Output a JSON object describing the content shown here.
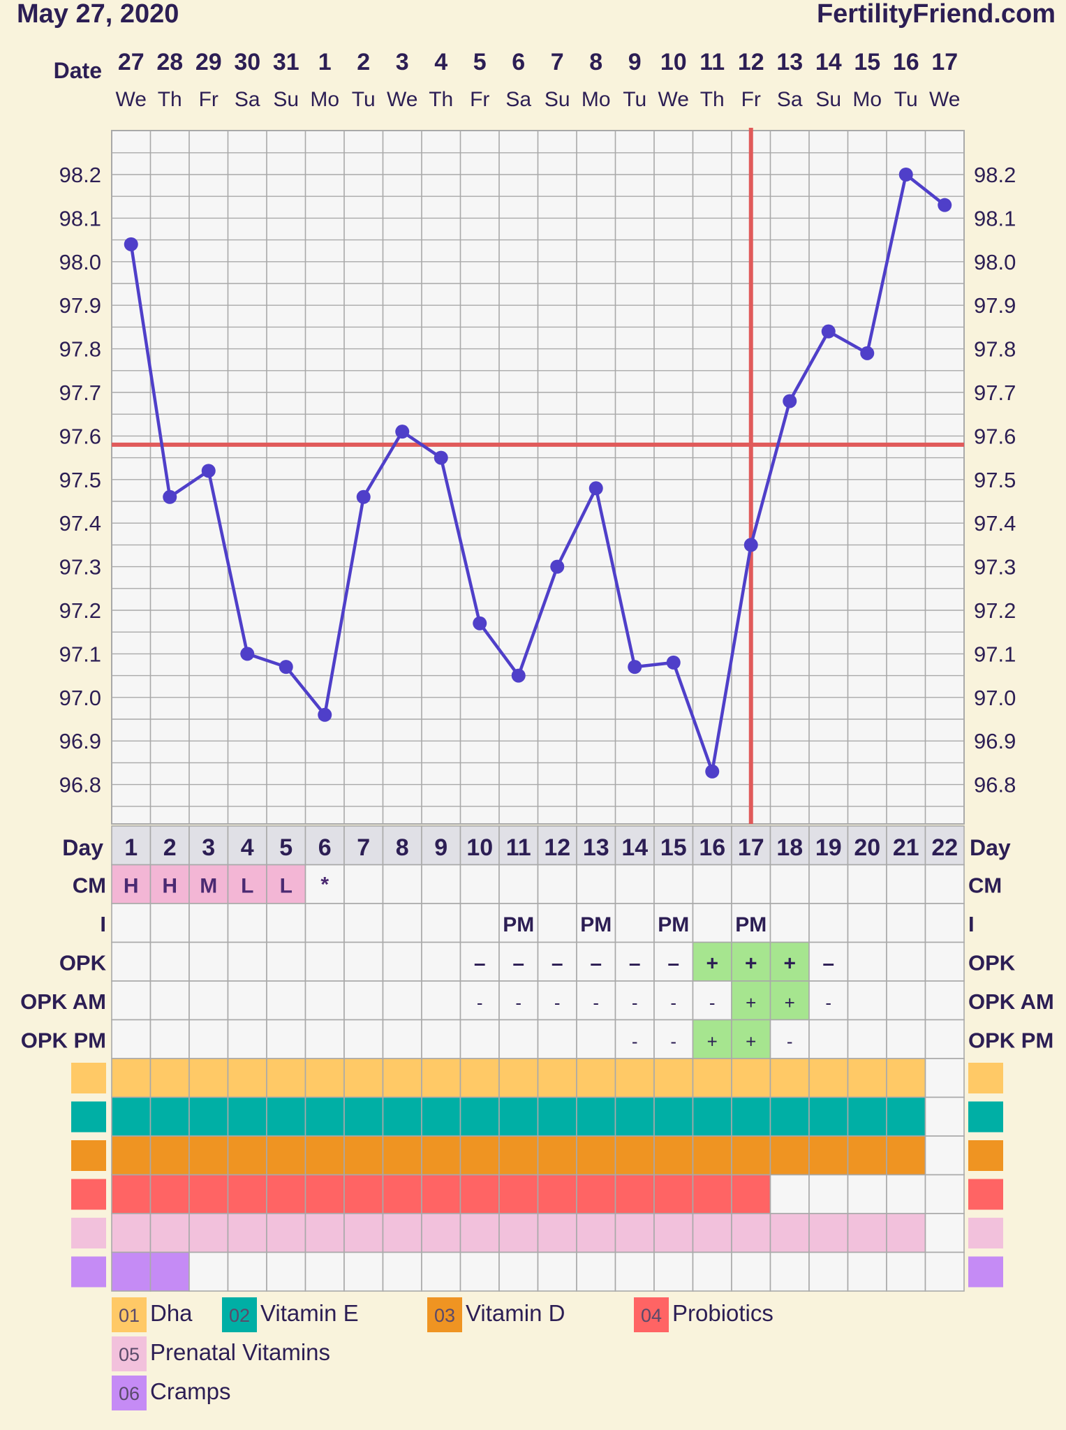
{
  "header": {
    "date": "May 27, 2020",
    "site": "FertilityFriend.com"
  },
  "row_labels": {
    "date": "Date",
    "day": "Day",
    "cm": "CM",
    "i": "I",
    "opk": "OPK",
    "opk_am": "OPK AM",
    "opk_pm": "OPK PM"
  },
  "chart_data": {
    "type": "line",
    "title": "",
    "xlabel": "",
    "ylabel": "",
    "ylim": [
      96.7,
      98.3
    ],
    "yticks": [
      96.8,
      96.9,
      97.0,
      97.1,
      97.2,
      97.3,
      97.4,
      97.5,
      97.6,
      97.7,
      97.8,
      97.9,
      98.0,
      98.1,
      98.2
    ],
    "dates": [
      "27",
      "28",
      "29",
      "30",
      "31",
      "1",
      "2",
      "3",
      "4",
      "5",
      "6",
      "7",
      "8",
      "9",
      "10",
      "11",
      "12",
      "13",
      "14",
      "15",
      "16",
      "17"
    ],
    "weekdays": [
      "We",
      "Th",
      "Fr",
      "Sa",
      "Su",
      "Mo",
      "Tu",
      "We",
      "Th",
      "Fr",
      "Sa",
      "Su",
      "Mo",
      "Tu",
      "We",
      "Th",
      "Fr",
      "Sa",
      "Su",
      "Mo",
      "Tu",
      "We"
    ],
    "cycle_days": [
      "1",
      "2",
      "3",
      "4",
      "5",
      "6",
      "7",
      "8",
      "9",
      "10",
      "11",
      "12",
      "13",
      "14",
      "15",
      "16",
      "17",
      "18",
      "19",
      "20",
      "21",
      "22"
    ],
    "temperatures": [
      98.04,
      97.46,
      97.52,
      97.1,
      97.07,
      96.96,
      97.46,
      97.61,
      97.55,
      97.17,
      97.05,
      97.3,
      97.48,
      97.07,
      97.08,
      96.83,
      97.35,
      97.68,
      97.84,
      97.79,
      98.2,
      98.13
    ],
    "coverline": 97.58,
    "ovulation_day": 17,
    "series_color": "#4f3fc9",
    "marker_color": "#e05a5a",
    "rows": {
      "cm": [
        "H",
        "H",
        "M",
        "L",
        "L",
        "*",
        "",
        "",
        "",
        "",
        "",
        "",
        "",
        "",
        "",
        "",
        "",
        "",
        "",
        "",
        "",
        ""
      ],
      "i": [
        "",
        "",
        "",
        "",
        "",
        "",
        "",
        "",
        "",
        "",
        "PM",
        "",
        "PM",
        "",
        "PM",
        "",
        "PM",
        "",
        "",
        "",
        "",
        ""
      ],
      "opk": [
        "",
        "",
        "",
        "",
        "",
        "",
        "",
        "",
        "",
        "-",
        "-",
        "-",
        "-",
        "-",
        "-",
        "+",
        "+",
        "+",
        "-",
        "",
        "",
        ""
      ],
      "opk_am": [
        "",
        "",
        "",
        "",
        "",
        "",
        "",
        "",
        "",
        "-",
        "-",
        "-",
        "-",
        "-",
        "-",
        "-",
        "+",
        "+",
        "-",
        "",
        "",
        ""
      ],
      "opk_pm": [
        "",
        "",
        "",
        "",
        "",
        "",
        "",
        "",
        "",
        "",
        "",
        "",
        "",
        "-",
        "-",
        "+",
        "+",
        "-",
        "",
        "",
        "",
        ""
      ]
    },
    "supplements": [
      {
        "code": "01",
        "name": "Dha",
        "color": "#ffc966",
        "days": [
          1,
          21
        ]
      },
      {
        "code": "02",
        "name": "Vitamin E",
        "color": "#00afa5",
        "days": [
          1,
          21
        ]
      },
      {
        "code": "03",
        "name": "Vitamin D",
        "color": "#ef9422",
        "days": [
          1,
          21
        ]
      },
      {
        "code": "04",
        "name": "Probiotics",
        "color": "#ff6464",
        "days": [
          1,
          17
        ]
      },
      {
        "code": "05",
        "name": "Prenatal Vitamins",
        "color": "#f2c1dc",
        "days": [
          1,
          21
        ]
      },
      {
        "code": "06",
        "name": "Cramps",
        "color": "#c58bf5",
        "days": [
          1,
          2
        ]
      }
    ]
  },
  "colors": {
    "background": "#f9f3dc",
    "cell": "#f6f6f6",
    "grid": "#a9a9a9",
    "day_row": "#e0e0e6",
    "cm_fill": "#f3b6d5",
    "cm_text": "#4b2a72",
    "opk_positive": "#a6e58f",
    "ink": "#2c1e54"
  }
}
